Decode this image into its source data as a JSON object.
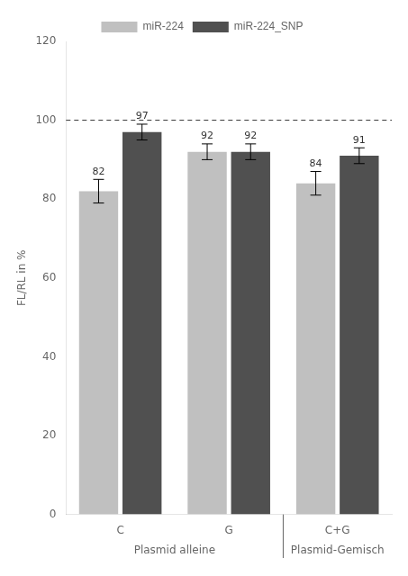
{
  "chart_data": {
    "type": "bar",
    "categories": [
      "C",
      "G",
      "C+G"
    ],
    "series": [
      {
        "name": "miR-224",
        "color": "#c0c0c0",
        "values": [
          82,
          92,
          84
        ],
        "errors": [
          3,
          2,
          3
        ]
      },
      {
        "name": "miR-224_SNP",
        "color": "#505050",
        "values": [
          97,
          92,
          91
        ],
        "errors": [
          2,
          2,
          2
        ]
      }
    ],
    "ylabel": "FL/RL in %",
    "ylim": [
      0,
      120
    ],
    "yticks": [
      0,
      20,
      40,
      60,
      80,
      100,
      120
    ],
    "grid": false,
    "legend": "top",
    "data_labels": true,
    "hline": 100,
    "annotations": [
      {
        "text": "Plasmid alleine",
        "categories": [
          "C",
          "G"
        ]
      },
      {
        "text": "Plasmid-Gemisch",
        "categories": [
          "C+G"
        ]
      }
    ]
  }
}
